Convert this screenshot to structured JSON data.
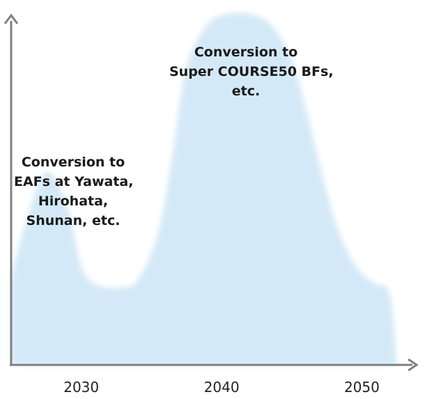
{
  "chart_data": {
    "type": "area",
    "title": "",
    "xlabel": "",
    "ylabel": "",
    "x_ticks": [
      "2030",
      "2040",
      "2050"
    ],
    "xlim": [
      2025,
      2054
    ],
    "ylim": [
      0,
      100
    ],
    "grid": false,
    "y_tick_labels_shown": false,
    "series": [
      {
        "x": [
          2025,
          2026,
          2027.5,
          2029,
          2030,
          2031,
          2032.5,
          2034,
          2035.5,
          2036.5,
          2037.5,
          2039,
          2040.5,
          2042,
          2043.5,
          2045,
          2046,
          2047,
          2048,
          2049,
          2050,
          2051,
          2052,
          2052.5
        ],
        "values": [
          25,
          40,
          55,
          45,
          28,
          23,
          22,
          24,
          38,
          60,
          85,
          97,
          100,
          100,
          97,
          87,
          73,
          57,
          42,
          32,
          26,
          23,
          20,
          0
        ]
      }
    ],
    "annotations": [
      {
        "lines": [
          "Conversion to",
          "EAFs at Yawata,",
          "Hirohata,",
          "Shunan, etc."
        ],
        "x": 2027.5
      },
      {
        "lines": [
          "Conversion to",
          "Super COURSE50 BFs,",
          "etc."
        ],
        "x": 2041.5
      }
    ],
    "colors": {
      "area": "#d4e9f7",
      "axis": "#808080",
      "text": "#1a1a1a"
    }
  }
}
